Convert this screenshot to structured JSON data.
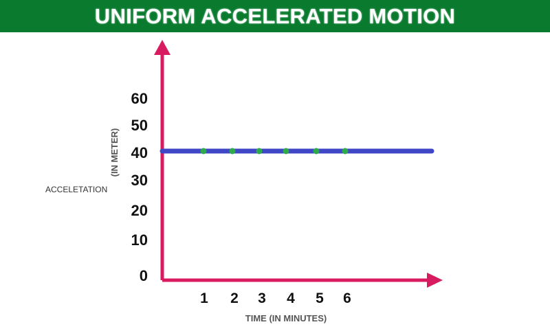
{
  "title": "UNIFORM ACCELERATED MOTION",
  "colors": {
    "title_bg": "#0a7a2e",
    "title_text": "#ffffff",
    "axis": "#d81b60",
    "line": "#3f47c6",
    "points": "#2eaa4a"
  },
  "chart_data": {
    "type": "line",
    "title": "UNIFORM ACCELERATED MOTION",
    "xlabel": "TIME (IN MINUTES)",
    "ylabel": "ACCELETATION",
    "ylabel_unit": "(IN METER)",
    "xlim": [
      0,
      8
    ],
    "ylim": [
      0,
      70
    ],
    "x_ticks": [
      1,
      2,
      3,
      4,
      5,
      6
    ],
    "y_ticks": [
      0,
      10,
      20,
      30,
      40,
      50,
      60
    ],
    "grid": false,
    "series": [
      {
        "x": [
          1,
          2,
          3,
          4,
          5,
          6
        ],
        "values": [
          40,
          40,
          40,
          40,
          40,
          40
        ],
        "line_range": [
          0,
          8
        ]
      }
    ]
  }
}
